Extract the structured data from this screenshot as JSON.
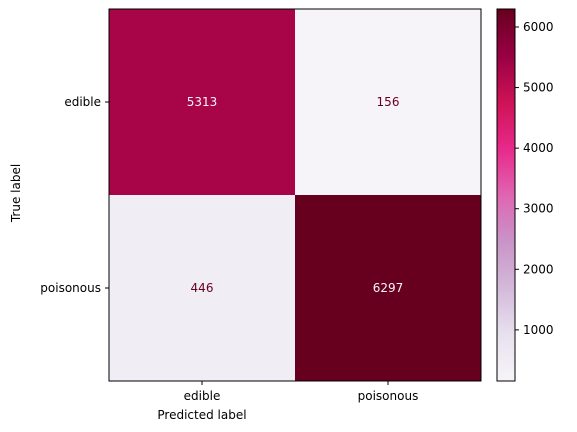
{
  "chart_data": {
    "type": "heatmap",
    "title": "",
    "xlabel": "Predicted label",
    "ylabel": "True label",
    "x_categories": [
      "edible",
      "poisonous"
    ],
    "y_categories": [
      "edible",
      "poisonous"
    ],
    "values": [
      [
        5313,
        156
      ],
      [
        446,
        6297
      ]
    ],
    "value_labels": [
      [
        "5313",
        "156"
      ],
      [
        "446",
        "6297"
      ]
    ],
    "colormap": "PuRd",
    "colorbar": {
      "range": [
        156,
        6297
      ],
      "ticks": [
        1000,
        2000,
        3000,
        4000,
        5000,
        6000
      ],
      "tick_labels": [
        "1000",
        "2000",
        "3000",
        "4000",
        "5000",
        "6000"
      ]
    },
    "colors": {
      "low": "#f7f4f9",
      "mid": "#e7298a",
      "high": "#67001f",
      "text_on_light": "#67001f",
      "text_on_dark": "#f7f4f9"
    }
  }
}
